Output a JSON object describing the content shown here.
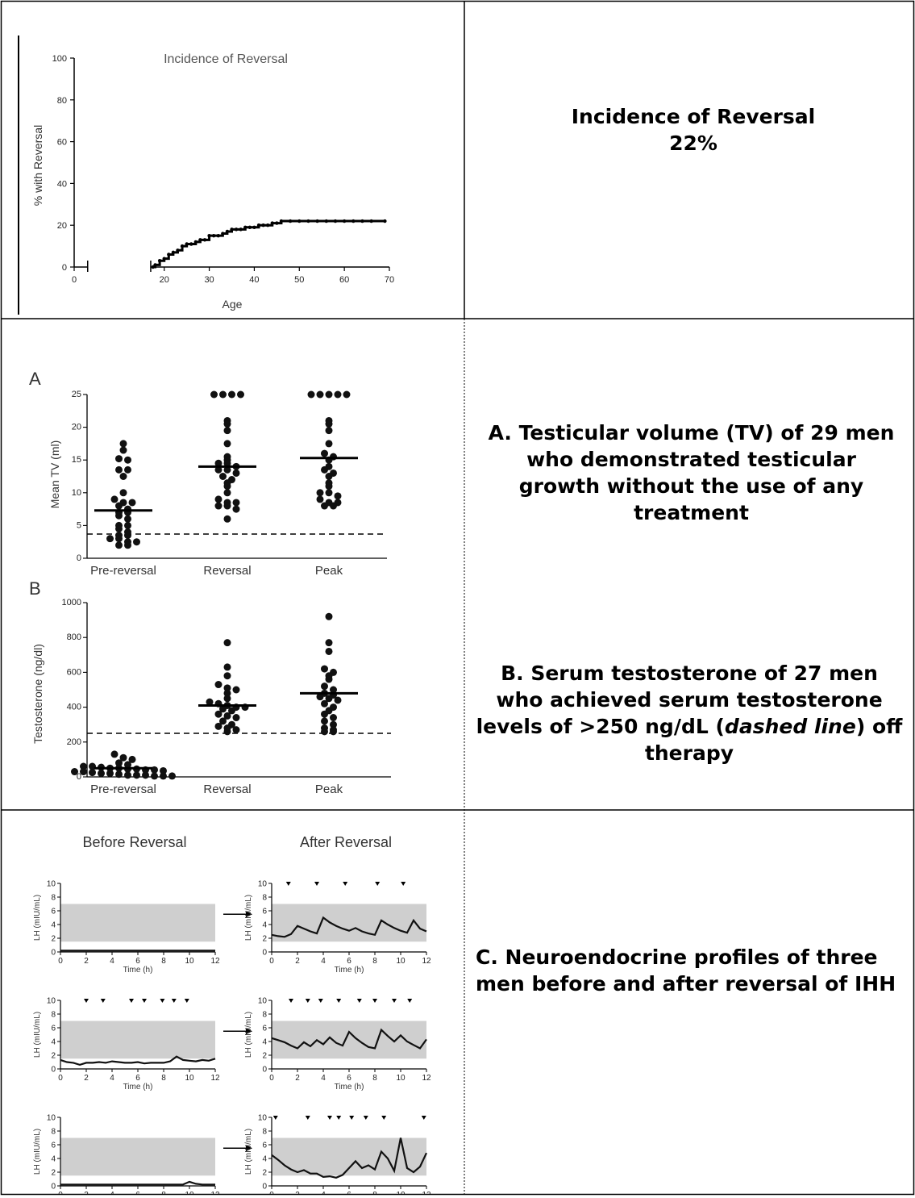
{
  "captions": {
    "row1": {
      "title": "Incidence of Reversal",
      "value": "22%"
    },
    "row2a": {
      "text": "A. Testicular volume (TV) of 29 men who demonstrated testicular growth without the use of any treatment"
    },
    "row2b": {
      "before": "B. Serum testosterone of 27 men who achieved serum testosterone levels of >250 ng/dL (",
      "italic": "dashed line",
      "after": ") off therapy"
    },
    "row3": {
      "text": "C. Neuroendocrine profiles of three men before and after reversal of IHH"
    }
  },
  "chart_data": [
    {
      "id": "incidence",
      "type": "line",
      "title": "Incidence of Reversal",
      "xlabel": "Age",
      "ylabel": "% with Reversal",
      "xlim": [
        0,
        70
      ],
      "ylim": [
        0,
        100
      ],
      "xticks": [
        "0",
        "20",
        "30",
        "40",
        "50",
        "60",
        "70"
      ],
      "yticks": [
        "0",
        "20",
        "40",
        "60",
        "80",
        "100"
      ],
      "x": [
        17.5,
        18,
        19,
        20,
        21,
        22,
        23,
        24,
        25,
        26,
        27,
        28,
        29,
        30,
        31,
        32,
        33,
        34,
        35,
        36,
        37,
        38,
        39,
        40,
        41,
        42,
        43,
        44,
        45,
        46,
        48,
        50,
        52,
        54,
        56,
        58,
        60,
        62,
        64,
        66,
        69
      ],
      "y": [
        0,
        1,
        3,
        4,
        6,
        7,
        8,
        10,
        11,
        11,
        12,
        13,
        13,
        15,
        15,
        15,
        16,
        17,
        18,
        18,
        18,
        19,
        19,
        19,
        20,
        20,
        20,
        21,
        21,
        22,
        22,
        22,
        22,
        22,
        22,
        22,
        22,
        22,
        22,
        22,
        22
      ]
    },
    {
      "id": "tv",
      "type": "scatter",
      "panel_label": "A",
      "ylabel": "Mean TV (ml)",
      "categories": [
        "Pre-reversal",
        "Reversal",
        "Peak"
      ],
      "ylim": [
        0,
        25
      ],
      "yticks": [
        "0",
        "5",
        "10",
        "15",
        "20",
        "25"
      ],
      "reference_line": 3.7,
      "means": [
        7.3,
        14.0,
        15.3
      ],
      "series": [
        {
          "values": [
            17.5,
            16.5,
            15.2,
            15.0,
            13.5,
            13.5,
            12.5,
            10.0,
            9.0,
            8.5,
            8.5,
            8.0,
            7.5,
            7.0,
            7.0,
            6.5,
            6.0,
            5.0,
            5.0,
            4.5,
            4.0,
            3.5,
            3.5,
            3.0,
            3.0,
            2.5,
            2.5,
            2.0,
            2.0
          ]
        },
        {
          "values": [
            25,
            25,
            25,
            25,
            21,
            20.5,
            19.5,
            17.5,
            15.5,
            15,
            14.5,
            14.5,
            14,
            13.5,
            13.5,
            13,
            12.5,
            12,
            11.5,
            11,
            10,
            9,
            8.5,
            8.5,
            8,
            8,
            7.5,
            6
          ]
        },
        {
          "values": [
            25,
            25,
            25,
            25,
            25,
            21,
            20.5,
            19.5,
            17.5,
            16,
            15.5,
            15,
            14,
            13.5,
            13,
            12.5,
            11.5,
            11,
            10,
            10,
            9.5,
            9,
            8.5,
            8.5,
            8,
            8
          ]
        }
      ]
    },
    {
      "id": "testosterone",
      "type": "scatter",
      "panel_label": "B",
      "ylabel": "Testosterone (ng/dl)",
      "categories": [
        "Pre-reversal",
        "Reversal",
        "Peak"
      ],
      "ylim": [
        0,
        1000
      ],
      "yticks": [
        "0",
        "200",
        "400",
        "600",
        "800",
        "1000"
      ],
      "reference_line": 250,
      "means": [
        50,
        410,
        480
      ],
      "series": [
        {
          "values": [
            130,
            110,
            100,
            80,
            70,
            60,
            60,
            55,
            50,
            50,
            45,
            45,
            40,
            40,
            35,
            30,
            30,
            25,
            20,
            20,
            15,
            10,
            10,
            10,
            5,
            5,
            5
          ]
        },
        {
          "values": [
            770,
            630,
            580,
            530,
            510,
            500,
            480,
            450,
            430,
            420,
            410,
            400,
            400,
            390,
            380,
            360,
            350,
            340,
            320,
            300,
            290,
            280,
            270,
            260
          ]
        },
        {
          "values": [
            920,
            770,
            720,
            620,
            600,
            580,
            560,
            520,
            500,
            480,
            470,
            460,
            450,
            440,
            420,
            400,
            380,
            360,
            340,
            320,
            300,
            280,
            270,
            260,
            260
          ]
        }
      ]
    },
    {
      "id": "lh_profiles",
      "type": "line",
      "column_titles": [
        "Before Reversal",
        "After Reversal"
      ],
      "ylabel": "LH (mIU/mL)",
      "xlabel": "Time (h)",
      "xticks": [
        "0",
        "2",
        "4",
        "6",
        "8",
        "10",
        "12"
      ],
      "yticks": [
        "0",
        "2",
        "4",
        "6",
        "8",
        "10"
      ],
      "xlim": [
        0,
        12
      ],
      "ylim": [
        0,
        10
      ],
      "normal_band": [
        1.5,
        7
      ],
      "panels": [
        {
          "name": "before-1",
          "pulses": [],
          "y": [
            0.2,
            0.2,
            0.2,
            0.2,
            0.2,
            0.2,
            0.2,
            0.2,
            0.2,
            0.2,
            0.2,
            0.2,
            0.2,
            0.2,
            0.2,
            0.2,
            0.2,
            0.2,
            0.2,
            0.2,
            0.2,
            0.2,
            0.2,
            0.2,
            0.2
          ]
        },
        {
          "name": "after-1",
          "pulses": [
            1.3,
            3.5,
            5.7,
            8.2,
            10.2
          ],
          "y": [
            2.5,
            2.3,
            2.2,
            2.6,
            3.8,
            3.4,
            3.0,
            2.7,
            5.0,
            4.3,
            3.8,
            3.4,
            3.1,
            3.5,
            3.0,
            2.7,
            2.5,
            4.6,
            4.0,
            3.5,
            3.1,
            2.8,
            4.6,
            3.4,
            3.0
          ]
        },
        {
          "name": "before-2",
          "pulses": [
            2.0,
            3.3,
            5.5,
            6.5,
            7.9,
            8.8,
            9.8
          ],
          "y": [
            1.3,
            1.0,
            0.9,
            0.6,
            0.9,
            0.9,
            1.0,
            0.9,
            1.1,
            1.0,
            0.9,
            0.9,
            1.0,
            0.8,
            0.9,
            0.9,
            0.9,
            1.1,
            1.8,
            1.3,
            1.2,
            1.1,
            1.3,
            1.2,
            1.5
          ]
        },
        {
          "name": "after-2",
          "pulses": [
            1.5,
            2.8,
            3.8,
            5.2,
            6.8,
            8.0,
            9.5,
            10.7
          ],
          "y": [
            4.5,
            4.2,
            3.9,
            3.4,
            3.0,
            3.9,
            3.3,
            4.2,
            3.6,
            4.6,
            3.8,
            3.4,
            5.4,
            4.5,
            3.8,
            3.2,
            3.0,
            5.7,
            4.8,
            4.0,
            4.9,
            4.0,
            3.5,
            3.0,
            4.3
          ]
        },
        {
          "name": "before-3",
          "pulses": [],
          "y": [
            0.2,
            0.2,
            0.2,
            0.2,
            0.2,
            0.2,
            0.2,
            0.2,
            0.2,
            0.2,
            0.2,
            0.2,
            0.2,
            0.2,
            0.2,
            0.2,
            0.2,
            0.2,
            0.2,
            0.2,
            0.6,
            0.3,
            0.2,
            0.2,
            0.2
          ]
        },
        {
          "name": "after-3",
          "pulses": [
            0.3,
            2.8,
            4.5,
            5.2,
            6.2,
            7.3,
            8.7,
            11.8
          ],
          "y": [
            4.5,
            3.8,
            3.0,
            2.4,
            2.0,
            2.3,
            1.8,
            1.8,
            1.3,
            1.4,
            1.2,
            1.6,
            2.6,
            3.6,
            2.6,
            3.0,
            2.4,
            5.0,
            4.0,
            2.2,
            7.0,
            2.6,
            2.0,
            2.8,
            4.8
          ]
        }
      ]
    }
  ]
}
